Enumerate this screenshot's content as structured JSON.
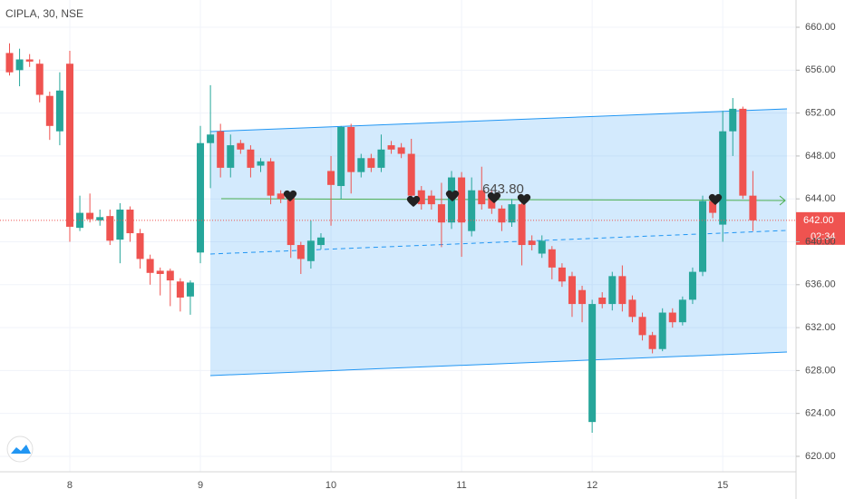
{
  "chart_data": {
    "type": "candlestick",
    "title": "CIPLA, 30, NSE",
    "categories": [
      null,
      null,
      null,
      null,
      null,
      null,
      "8",
      null,
      null,
      null,
      null,
      null,
      null,
      null,
      null,
      null,
      null,
      null,
      null,
      "9",
      null,
      null,
      null,
      null,
      null,
      null,
      null,
      null,
      null,
      null,
      null,
      null,
      "10",
      null,
      null,
      null,
      null,
      null,
      null,
      null,
      null,
      null,
      null,
      null,
      null,
      "11",
      null,
      null,
      null,
      null,
      null,
      null,
      null,
      null,
      null,
      null,
      null,
      null,
      "12",
      null,
      null,
      null,
      null,
      null,
      null,
      null,
      null,
      null,
      null,
      null,
      null,
      "15",
      null,
      null,
      null
    ],
    "open": [
      657.6,
      656.0,
      657.0,
      656.6,
      653.6,
      650.3,
      656.6,
      641.3,
      642.7,
      642.0,
      642.4,
      640.2,
      643.0,
      640.8,
      638.4,
      637.3,
      637.3,
      636.3,
      634.9,
      639.0,
      649.2,
      650.3,
      646.9,
      649.2,
      648.6,
      647.1,
      647.5,
      644.5,
      644.3,
      639.7,
      638.2,
      639.7,
      646.6,
      645.2,
      650.7,
      646.5,
      647.8,
      646.9,
      649.0,
      648.8,
      648.2,
      644.8,
      644.3,
      643.5,
      641.8,
      646.0,
      641.0,
      644.8,
      644.3,
      643.1,
      641.8,
      643.5,
      640.1,
      638.9,
      639.3,
      637.6,
      636.8,
      635.5,
      623.2,
      634.8,
      634.2,
      636.8,
      634.6,
      633.0,
      631.3,
      630.0,
      633.4,
      632.5,
      634.6,
      637.2,
      643.8,
      641.6,
      650.3,
      652.4,
      644.3
    ],
    "high": [
      658.5,
      658.0,
      657.5,
      657.0,
      654.0,
      655.8,
      657.8,
      644.3,
      644.5,
      643.0,
      643.0,
      643.6,
      643.3,
      641.2,
      638.8,
      637.6,
      637.5,
      636.6,
      636.4,
      650.8,
      654.6,
      651.0,
      650.0,
      649.5,
      649.0,
      647.8,
      647.8,
      644.8,
      644.6,
      640.0,
      642.0,
      640.8,
      648.0,
      650.8,
      651.0,
      648.2,
      648.2,
      650.0,
      649.4,
      649.2,
      649.6,
      645.2,
      644.8,
      645.5,
      646.6,
      646.5,
      646.0,
      647.0,
      644.8,
      643.4,
      644.0,
      643.9,
      640.6,
      640.6,
      639.6,
      638.0,
      637.2,
      635.9,
      634.6,
      635.3,
      637.2,
      637.8,
      635.0,
      633.4,
      631.6,
      633.8,
      633.8,
      634.9,
      637.6,
      644.3,
      644.2,
      652.2,
      653.4,
      652.6,
      646.6
    ],
    "low": [
      655.5,
      654.5,
      656.3,
      653.0,
      649.5,
      649.0,
      640.0,
      641.0,
      641.8,
      641.5,
      639.7,
      638.0,
      640.0,
      637.5,
      636.0,
      635.0,
      634.0,
      633.5,
      633.2,
      638.0,
      645.0,
      646.0,
      646.0,
      648.2,
      646.0,
      646.5,
      643.5,
      643.6,
      638.5,
      637.0,
      637.5,
      639.3,
      641.5,
      644.0,
      644.5,
      646.0,
      646.5,
      646.5,
      648.2,
      647.8,
      643.5,
      643.0,
      643.0,
      639.5,
      641.2,
      638.6,
      640.5,
      643.0,
      642.6,
      641.0,
      641.4,
      637.8,
      639.2,
      638.5,
      636.5,
      635.8,
      633.0,
      632.5,
      622.2,
      633.8,
      633.6,
      633.5,
      632.5,
      630.8,
      629.6,
      629.8,
      632.0,
      632.2,
      634.2,
      636.8,
      642.2,
      640.0,
      648.0,
      644.0,
      641.0
    ],
    "close": [
      655.8,
      657.0,
      656.8,
      653.7,
      650.8,
      654.1,
      641.4,
      642.7,
      642.1,
      642.3,
      640.1,
      643.0,
      640.8,
      638.4,
      637.1,
      637.0,
      636.4,
      634.8,
      636.2,
      649.2,
      650.0,
      646.9,
      649.0,
      648.6,
      646.9,
      647.5,
      644.3,
      644.0,
      639.7,
      638.4,
      640.1,
      640.4,
      645.3,
      650.7,
      646.5,
      647.8,
      646.9,
      648.6,
      648.6,
      648.2,
      644.3,
      643.5,
      643.5,
      641.8,
      646.0,
      641.8,
      644.8,
      643.5,
      643.1,
      641.8,
      643.5,
      639.7,
      639.7,
      640.1,
      637.6,
      636.3,
      634.2,
      634.2,
      634.2,
      634.2,
      636.8,
      634.2,
      633.0,
      631.3,
      630.0,
      633.4,
      632.5,
      634.6,
      637.2,
      643.8,
      642.7,
      650.3,
      652.4,
      644.3,
      642.0
    ],
    "up_color": "#26a69a",
    "down_color": "#ef5350",
    "ylim": [
      618.56,
      662.54
    ],
    "yticks": [
      {
        "value": 620,
        "label": "620.00"
      },
      {
        "value": 624,
        "label": "624.00"
      },
      {
        "value": 628,
        "label": "628.00"
      },
      {
        "value": 632,
        "label": "632.00"
      },
      {
        "value": 636,
        "label": "636.00"
      },
      {
        "value": 640,
        "label": "640.00"
      },
      {
        "value": 644,
        "label": "644.00"
      },
      {
        "value": 648,
        "label": "648.00"
      },
      {
        "value": 652,
        "label": "652.00"
      },
      {
        "value": 656,
        "label": "656.00"
      },
      {
        "value": 660,
        "label": "660.00"
      }
    ],
    "grid": true,
    "last_price": {
      "value": 642,
      "label": "642.00"
    },
    "countdown": "02:34",
    "annotation": "643.80"
  }
}
